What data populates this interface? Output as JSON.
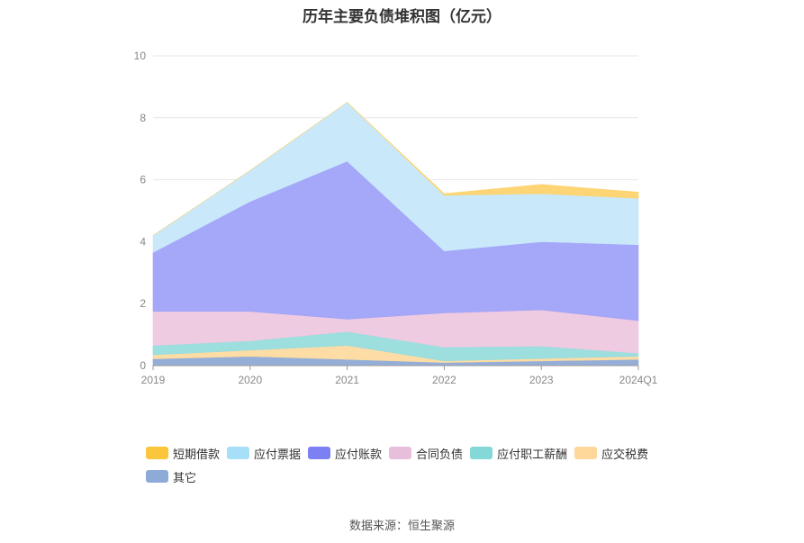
{
  "chart_data": {
    "type": "area",
    "stacked": true,
    "title": "历年主要负债堆积图（亿元）",
    "categories": [
      "2019",
      "2020",
      "2021",
      "2022",
      "2023",
      "2024Q1"
    ],
    "ylim": [
      0,
      10
    ],
    "yticks": [
      0,
      2,
      4,
      6,
      8,
      10
    ],
    "grid": true,
    "legend_position": "bottom",
    "series": [
      {
        "name": "其它",
        "color": "#8eaad6",
        "values": [
          0.22,
          0.3,
          0.2,
          0.1,
          0.15,
          0.2
        ]
      },
      {
        "name": "应交税费",
        "color": "#fddba0",
        "values": [
          0.13,
          0.2,
          0.45,
          0.05,
          0.08,
          0.1
        ]
      },
      {
        "name": "应付职工薪酬",
        "color": "#98dcdc",
        "values": [
          0.3,
          0.3,
          0.45,
          0.45,
          0.4,
          0.1
        ]
      },
      {
        "name": "合同负债",
        "color": "#eec8e0",
        "values": [
          1.1,
          0.95,
          0.4,
          1.1,
          1.17,
          1.05
        ]
      },
      {
        "name": "应付账款",
        "color": "#a0a2f8",
        "values": [
          1.9,
          3.55,
          5.1,
          2.0,
          2.2,
          2.45
        ]
      },
      {
        "name": "应付票据",
        "color": "#c6e8fa",
        "values": [
          0.55,
          1.0,
          1.9,
          1.8,
          1.55,
          1.5
        ]
      },
      {
        "name": "短期借款",
        "color": "#fdd36e",
        "values": [
          0.0,
          0.0,
          0.0,
          0.05,
          0.3,
          0.2
        ]
      }
    ],
    "legend_order": [
      "短期借款",
      "应付票据",
      "应付账款",
      "合同负债",
      "应付职工薪酬",
      "应交税费",
      "其它"
    ],
    "legend_colors": {
      "短期借款": "#fcc63c",
      "应付票据": "#a8dff8",
      "应付账款": "#7c80f2",
      "合同负债": "#e8bedd",
      "应付职工薪酬": "#85d8d8",
      "应交税费": "#fdd89a",
      "其它": "#8eaad6"
    }
  },
  "source_text": "数据来源：恒生聚源"
}
